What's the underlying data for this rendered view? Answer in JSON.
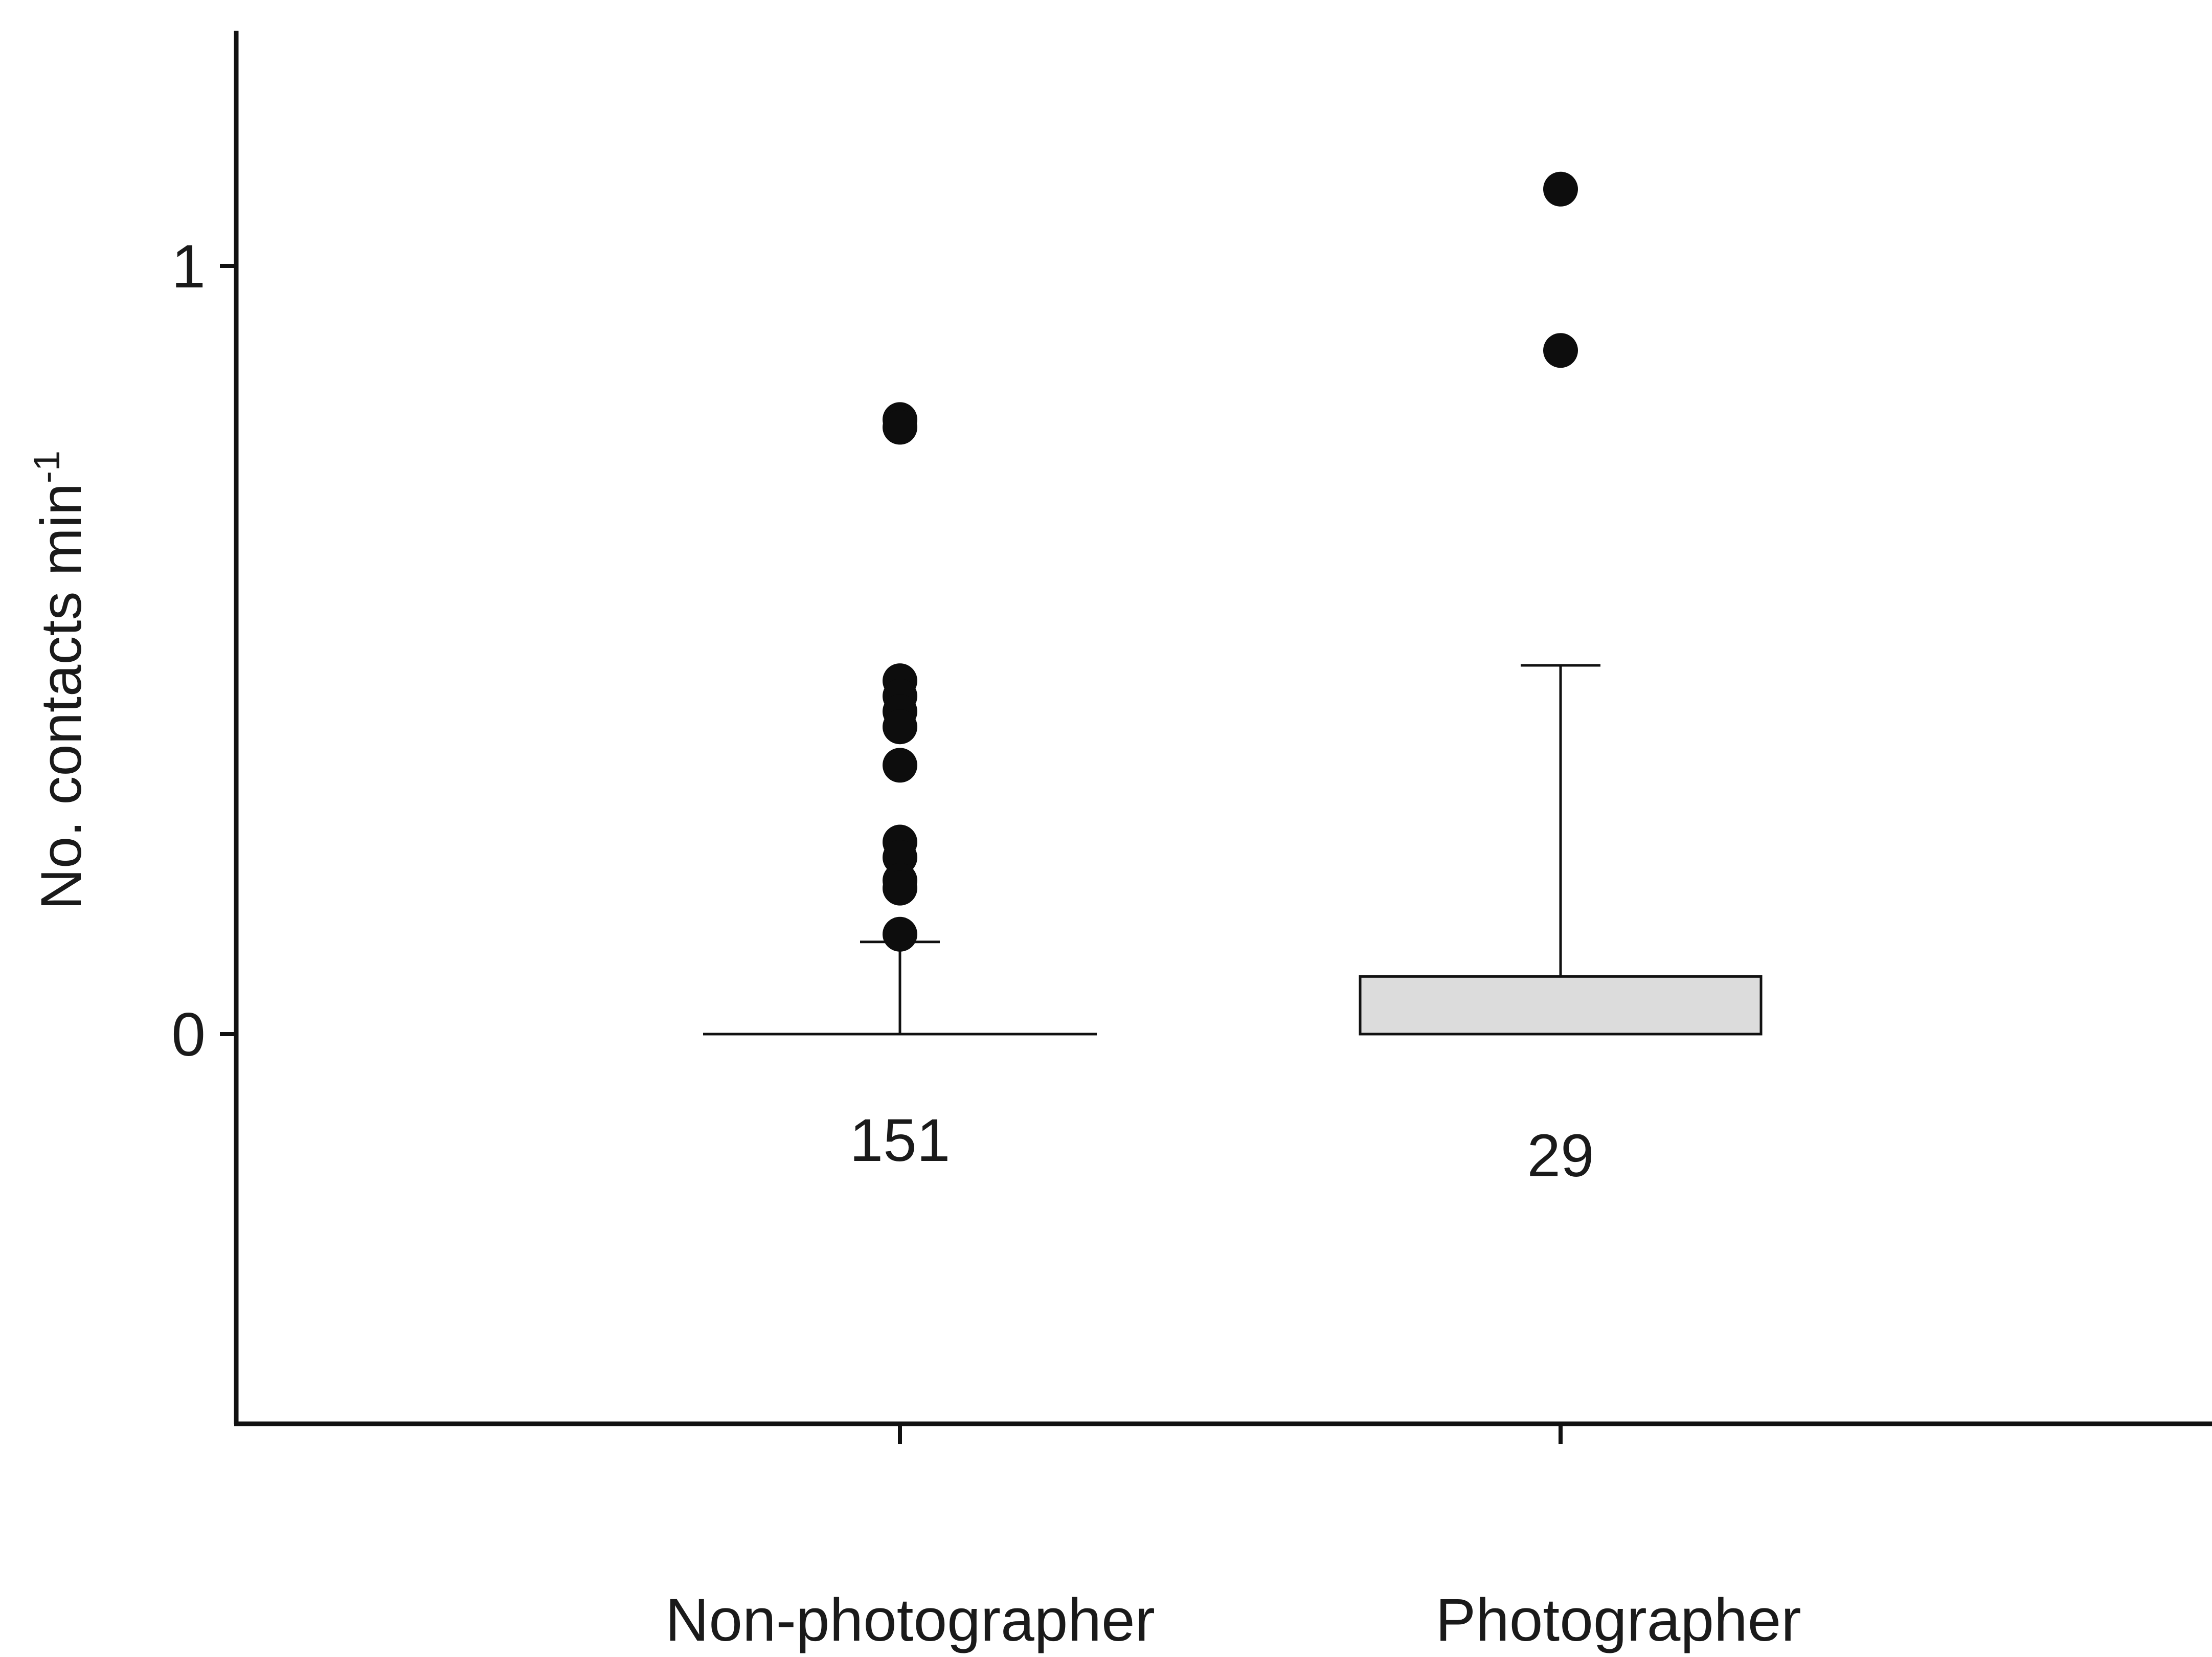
{
  "chart_data": {
    "type": "box",
    "ylabel": "No. contacts min",
    "ylabel_superscript": "-1",
    "yticks": [
      {
        "value": 0,
        "label": "0"
      },
      {
        "value": 1,
        "label": "1"
      }
    ],
    "ylim": [
      -0.5,
      1.3
    ],
    "grid": false,
    "box_fill": "#dcdcdc",
    "outlier_color": "#0d0d0d",
    "groups": [
      {
        "category": "Non-photographer",
        "n": "151",
        "q1": 0,
        "median": 0,
        "q3": 0,
        "whisker_low": 0,
        "whisker_high": 0.12,
        "outliers": [
          0.8,
          0.79,
          0.46,
          0.44,
          0.42,
          0.4,
          0.35,
          0.25,
          0.23,
          0.2,
          0.19,
          0.13
        ]
      },
      {
        "category": "Photographer",
        "n": "29",
        "q1": 0,
        "median": 0,
        "q3": 0.075,
        "whisker_low": 0,
        "whisker_high": 0.48,
        "outliers": [
          1.1,
          0.89
        ]
      }
    ]
  }
}
